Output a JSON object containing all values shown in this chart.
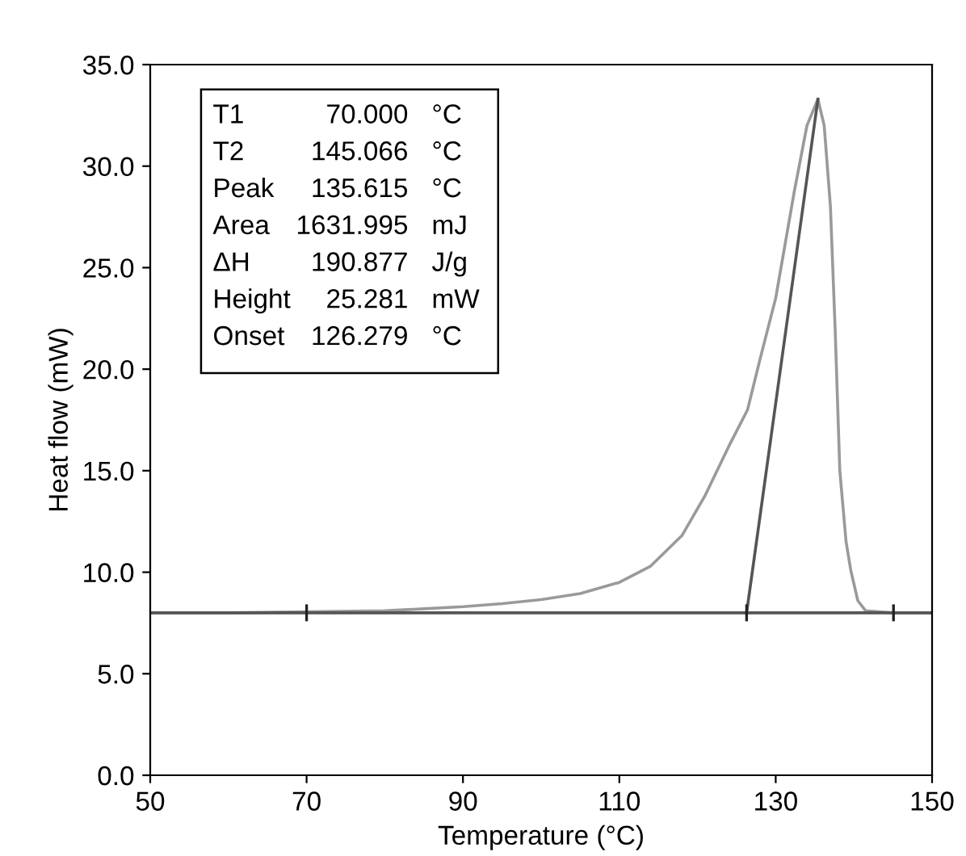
{
  "chart_data": {
    "type": "line",
    "xlabel": "Temperature (°C)",
    "ylabel": "Heat flow (mW)",
    "xlim": [
      50,
      150
    ],
    "xticks": [
      50,
      70,
      90,
      110,
      130,
      150
    ],
    "ylim": [
      0,
      35
    ],
    "yticks": [
      {
        "value": 0,
        "label": "0.0"
      },
      {
        "value": 5,
        "label": "5.0"
      },
      {
        "value": 10,
        "label": "10.0"
      },
      {
        "value": 15,
        "label": "15.0"
      },
      {
        "value": 20,
        "label": "20.0"
      },
      {
        "value": 25,
        "label": "25.0"
      },
      {
        "value": 30,
        "label": "30.0"
      },
      {
        "value": 35,
        "label": "35.0"
      }
    ],
    "grid": false,
    "legend": false,
    "series": [
      {
        "color": "#9a9a9a",
        "x": [
          50,
          60,
          70,
          80,
          85,
          90,
          95,
          100,
          105,
          110,
          114,
          118,
          121,
          124,
          126.4,
          128,
          130,
          132.4,
          134,
          135.4,
          136.2,
          137,
          137.6,
          138.2,
          139,
          139.6,
          140.5,
          141.5,
          145,
          150
        ],
        "values": [
          8.0,
          8.0,
          8.05,
          8.1,
          8.2,
          8.3,
          8.45,
          8.65,
          8.95,
          9.5,
          10.3,
          11.8,
          13.8,
          16.2,
          18.0,
          20.5,
          23.5,
          28.8,
          32.0,
          33.3,
          32.0,
          28.0,
          22.0,
          15.0,
          11.5,
          10.1,
          8.6,
          8.1,
          8.0,
          8.0
        ]
      },
      {
        "color": "#555555",
        "x": [
          50,
          150
        ],
        "values": [
          8.0,
          8.0
        ]
      },
      {
        "color": "#555555",
        "x": [
          126.279,
          135.4
        ],
        "values": [
          8.0,
          33.3
        ]
      }
    ],
    "annotations": [
      "T1",
      "70.000",
      "°C",
      "T2",
      "145.066",
      "°C",
      "Peak",
      "135.615",
      "°C",
      "Area",
      "1631.995",
      "mJ",
      "ΔH",
      "190.877",
      "J/g",
      "Height",
      "25.281",
      "mW",
      "Onset",
      "126.279",
      "°C"
    ]
  }
}
